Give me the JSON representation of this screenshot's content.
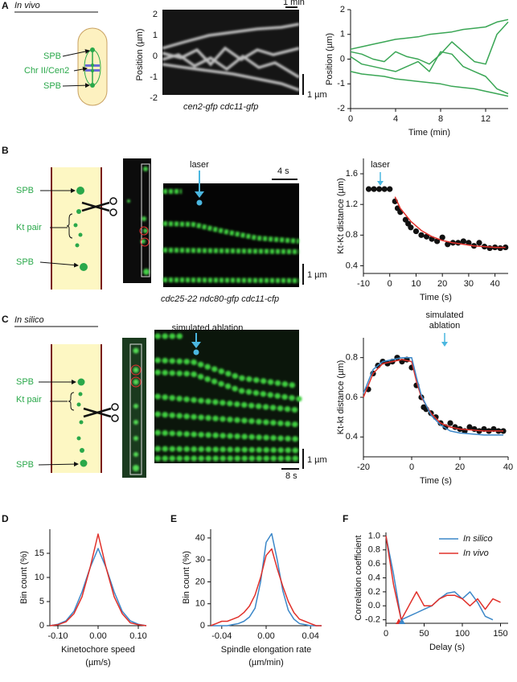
{
  "figure": {
    "panel_letters": [
      "A",
      "B",
      "C",
      "D",
      "E",
      "F"
    ],
    "a": {
      "condition": "In vivo",
      "labels": [
        "SPB",
        "Chr II/Cen2",
        "SPB"
      ],
      "kymo_ylabel": "Position (µm)",
      "kymo_yticks": [
        2,
        1,
        0,
        -1,
        -2
      ],
      "time_scale": "1 min",
      "length_scale": "1 µm",
      "strain": "cen2-gfp cdc11-gfp"
    },
    "b": {
      "labels": [
        "SPB",
        "Kt pair",
        "SPB"
      ],
      "event": "laser",
      "time_scale": "4 s",
      "length_scale": "1 µm",
      "strain": "cdc25-22 ndc80-gfp cdc11-cfp"
    },
    "c": {
      "condition": "In silico",
      "labels": [
        "SPB",
        "Kt pair",
        "SPB"
      ],
      "event": "simulated ablation",
      "length_scale": "1 µm",
      "time_scale": "8 s"
    }
  },
  "chart_data": [
    {
      "type": "line",
      "xlabel": "Time (min)",
      "ylabel": "Position (µm)",
      "x": [
        0,
        1,
        2,
        3,
        4,
        5,
        6,
        7,
        8,
        9,
        10,
        11,
        12,
        13,
        14
      ],
      "series": [
        {
          "color": "#3aa655",
          "values": [
            0.4,
            0.5,
            0.6,
            0.7,
            0.8,
            0.85,
            0.9,
            1.0,
            1.05,
            1.1,
            1.2,
            1.25,
            1.3,
            1.5,
            1.6
          ]
        },
        {
          "color": "#3aa655",
          "values": [
            -0.5,
            -0.6,
            -0.65,
            -0.7,
            -0.8,
            -0.85,
            -0.9,
            -0.95,
            -1.0,
            -1.1,
            -1.15,
            -1.2,
            -1.3,
            -1.4,
            -1.5
          ]
        },
        {
          "color": "#3aa655",
          "values": [
            0.3,
            0.2,
            0,
            -0.1,
            0.3,
            0.1,
            0,
            -0.2,
            0.2,
            0.7,
            0.3,
            -0.1,
            -0.2,
            1.0,
            1.5
          ]
        },
        {
          "color": "#3aa655",
          "values": [
            0.1,
            -0.2,
            -0.3,
            -0.4,
            -0.5,
            -0.3,
            -0.1,
            -0.5,
            0.3,
            0.2,
            -0.3,
            -0.5,
            -0.7,
            -1.2,
            -1.4
          ]
        }
      ],
      "xlim": [
        0,
        14
      ],
      "ylim": [
        -2,
        2
      ],
      "xticks": [
        0,
        4,
        8,
        12
      ],
      "yticks": [
        -2,
        -1,
        0,
        1,
        2
      ]
    },
    {
      "type": "scatter",
      "xlabel": "Time (s)",
      "ylabel": "Kt-Kt distance (µm)",
      "annotation": [
        "laser"
      ],
      "series": [
        {
          "color": "#111111",
          "x": [
            -8,
            -6,
            -4,
            -2,
            0,
            2,
            3,
            4,
            6,
            7,
            8,
            10,
            12,
            14,
            16,
            18,
            20,
            22,
            24,
            26,
            28,
            30,
            32,
            34,
            36,
            38,
            40,
            42,
            44
          ],
          "values": [
            1.4,
            1.4,
            1.4,
            1.4,
            1.4,
            1.24,
            1.15,
            1.1,
            1.0,
            0.95,
            0.9,
            0.85,
            0.8,
            0.78,
            0.75,
            0.72,
            0.77,
            0.68,
            0.7,
            0.7,
            0.72,
            0.7,
            0.66,
            0.7,
            0.65,
            0.63,
            0.64,
            0.63,
            0.64
          ]
        },
        {
          "kind": "line",
          "color": "#e0302a",
          "x": [
            2,
            4,
            8,
            12,
            16,
            20,
            24,
            28,
            32,
            36,
            40,
            44
          ],
          "values": [
            1.3,
            1.15,
            0.98,
            0.86,
            0.78,
            0.73,
            0.7,
            0.68,
            0.66,
            0.65,
            0.64,
            0.64
          ]
        }
      ],
      "xlim": [
        -10,
        45
      ],
      "ylim": [
        0.3,
        1.8
      ],
      "xticks": [
        -10,
        0,
        10,
        20,
        30,
        40
      ],
      "yticks": [
        0.4,
        0.8,
        1.2,
        1.6
      ]
    },
    {
      "type": "scatter",
      "xlabel": "Time (s)",
      "ylabel": "Kt-kt distance (µm)",
      "annotation": [
        "simulated",
        "ablation"
      ],
      "series": [
        {
          "color": "#111111",
          "x": [
            -18,
            -16,
            -14,
            -12,
            -10,
            -8,
            -6,
            -4,
            -2,
            0,
            2,
            4,
            5,
            6,
            8,
            10,
            12,
            14,
            16,
            18,
            20,
            22,
            24,
            26,
            28,
            30,
            32,
            34,
            36,
            38
          ],
          "values": [
            0.64,
            0.72,
            0.76,
            0.78,
            0.77,
            0.78,
            0.8,
            0.78,
            0.79,
            0.75,
            0.66,
            0.6,
            0.55,
            0.54,
            0.52,
            0.5,
            0.47,
            0.45,
            0.47,
            0.45,
            0.44,
            0.43,
            0.45,
            0.44,
            0.43,
            0.44,
            0.43,
            0.44,
            0.43,
            0.43
          ]
        },
        {
          "kind": "line",
          "color": "#e0302a",
          "x": [
            -20,
            -16,
            -12,
            -8,
            -4,
            0,
            2,
            4,
            8,
            12,
            16,
            20,
            30,
            38
          ],
          "values": [
            0.6,
            0.72,
            0.77,
            0.78,
            0.79,
            0.78,
            0.68,
            0.6,
            0.52,
            0.47,
            0.45,
            0.44,
            0.43,
            0.43
          ]
        },
        {
          "kind": "line",
          "color": "#3b87c8",
          "x": [
            -20,
            -16,
            -12,
            -8,
            -4,
            0,
            2,
            4,
            8,
            12,
            16,
            20,
            30,
            38
          ],
          "values": [
            0.62,
            0.74,
            0.78,
            0.79,
            0.8,
            0.8,
            0.7,
            0.61,
            0.51,
            0.46,
            0.43,
            0.42,
            0.41,
            0.41
          ]
        }
      ],
      "xlim": [
        -20,
        40
      ],
      "ylim": [
        0.3,
        0.9
      ],
      "xticks": [
        -20,
        0,
        20,
        40
      ],
      "yticks": [
        0.4,
        0.6,
        0.8
      ]
    },
    {
      "type": "line",
      "xlabel": [
        "Kinetochore speed",
        "(µm/s)"
      ],
      "ylabel": "Bin count (%)",
      "x": [
        -0.12,
        -0.1,
        -0.08,
        -0.06,
        -0.04,
        -0.02,
        0,
        0.02,
        0.04,
        0.06,
        0.08,
        0.1,
        0.12
      ],
      "series": [
        {
          "color": "#3b87c8",
          "values": [
            0,
            0.3,
            1,
            3,
            7,
            12,
            16,
            12,
            7,
            3,
            1,
            0.3,
            0
          ]
        },
        {
          "color": "#e0302a",
          "values": [
            0,
            0.2,
            0.8,
            2.5,
            6,
            12,
            19,
            12,
            6,
            2.5,
            0.6,
            0.2,
            0
          ]
        }
      ],
      "xlim": [
        -0.12,
        0.12
      ],
      "ylim": [
        0,
        20
      ],
      "xticks": [
        {
          "value": -0.1,
          "label": "-0.10"
        },
        {
          "value": 0,
          "label": "0.00"
        },
        {
          "value": 0.1,
          "label": "0.10"
        }
      ],
      "yticks": [
        0,
        5,
        10,
        15
      ]
    },
    {
      "type": "line",
      "xlabel": [
        "Spindle elongation rate",
        "(µm/min)"
      ],
      "ylabel": "Bin count (%)",
      "x": [
        -0.05,
        -0.045,
        -0.04,
        -0.035,
        -0.03,
        -0.025,
        -0.02,
        -0.015,
        -0.01,
        -0.005,
        0,
        0.005,
        0.01,
        0.015,
        0.02,
        0.025,
        0.03,
        0.035,
        0.04,
        0.045,
        0.05
      ],
      "series": [
        {
          "color": "#3b87c8",
          "values": [
            0,
            0,
            0,
            0,
            0.5,
            1,
            2,
            4,
            8,
            20,
            38,
            42,
            30,
            16,
            7,
            3,
            1,
            0.5,
            0,
            0,
            0
          ]
        },
        {
          "color": "#e0302a",
          "values": [
            0,
            1,
            2,
            2,
            3,
            4,
            6,
            9,
            14,
            22,
            32,
            35,
            26,
            18,
            11,
            6,
            3,
            2,
            1,
            0,
            0
          ]
        }
      ],
      "xlim": [
        -0.05,
        0.05
      ],
      "ylim": [
        0,
        44
      ],
      "xticks": [
        -0.04,
        {
          "value": 0,
          "label": "0.00"
        },
        0.04
      ],
      "yticks": [
        0,
        10,
        20,
        30,
        40
      ]
    },
    {
      "type": "line",
      "xlabel": "Delay (s)",
      "ylabel": "Correlation coefficient",
      "legend": "upper right",
      "x": [
        0,
        10,
        20,
        30,
        40,
        50,
        60,
        70,
        80,
        90,
        100,
        110,
        120,
        130,
        140,
        150
      ],
      "series": [
        {
          "name": "In silico",
          "color": "#3b87c8",
          "values": [
            1.0,
            0.45,
            -0.2,
            -0.15,
            -0.1,
            -0.05,
            0.0,
            0.1,
            0.18,
            0.2,
            0.1,
            0.2,
            0.05,
            -0.15,
            -0.2,
            null
          ]
        },
        {
          "name": "In vivo",
          "color": "#e0302a",
          "values": [
            1.0,
            0.3,
            -0.2,
            0.0,
            0.2,
            0.0,
            0.0,
            0.1,
            0.15,
            0.15,
            0.1,
            0.0,
            0.1,
            -0.05,
            0.1,
            0.05
          ]
        }
      ],
      "markers": [
        {
          "x": 17,
          "color": "#e0302a"
        },
        {
          "x": 21,
          "color": "#3b87c8"
        }
      ],
      "xlim": [
        0,
        160
      ],
      "ylim": [
        -0.25,
        1.05
      ],
      "xticks": [
        0,
        50,
        100,
        150
      ],
      "yticks": [
        -0.2,
        {
          "value": 0,
          "label": "0.0"
        },
        0.2,
        0.4,
        0.6,
        0.8,
        {
          "value": 1,
          "label": "1.0"
        }
      ]
    }
  ]
}
